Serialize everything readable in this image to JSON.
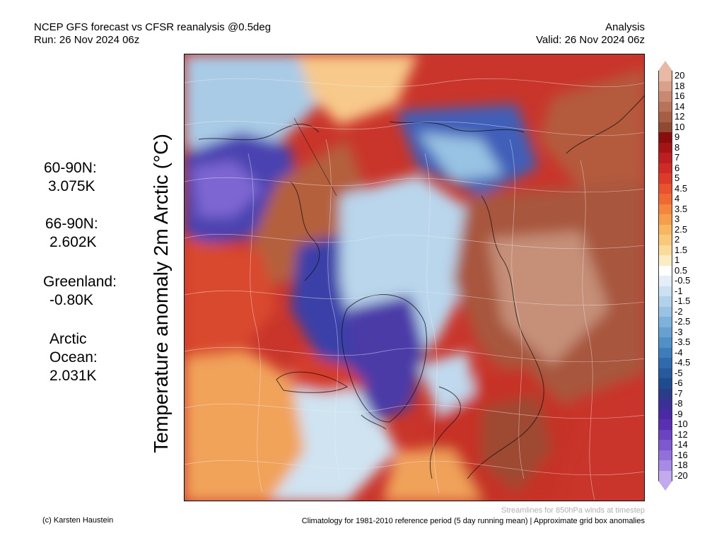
{
  "header": {
    "title": "NCEP GFS forecast vs CFSR reanalysis @0.5deg",
    "run": "Run: 26 Nov 2024 06z",
    "type": "Analysis",
    "valid": "Valid: 26 Nov 2024 06z"
  },
  "y_title": "Temperature anomaly 2m Arctic (°C)",
  "stats": [
    {
      "label": "60-90N:",
      "value": "3.075K"
    },
    {
      "label": "66-90N:",
      "value": "2.602K"
    },
    {
      "label": "Greenland:",
      "value": "-0.80K"
    },
    {
      "label": "Arctic",
      "label2": "Ocean:",
      "value": "2.031K"
    }
  ],
  "colorbar": {
    "levels": [
      "20",
      "18",
      "16",
      "14",
      "12",
      "10",
      "9",
      "8",
      "7",
      "6",
      "5",
      "4.5",
      "4",
      "3.5",
      "3",
      "2.5",
      "2",
      "1.5",
      "1",
      "0.5",
      "-0.5",
      "-1",
      "-1.5",
      "-2",
      "-2.5",
      "-3",
      "-3.5",
      "-4",
      "-4.5",
      "-5",
      "-6",
      "-7",
      "-8",
      "-9",
      "-10",
      "-12",
      "-14",
      "-16",
      "-18",
      "-20"
    ],
    "colors": [
      "#e8b9a4",
      "#d9a08a",
      "#c98870",
      "#b87358",
      "#a65f45",
      "#8e4a33",
      "#8a0d0d",
      "#a31515",
      "#bb1f1f",
      "#cf2a24",
      "#de3a2a",
      "#e8532e",
      "#ef6a33",
      "#f3853c",
      "#f59f4c",
      "#f7b65f",
      "#f8c978",
      "#fadb99",
      "#fcecc3",
      "#ffffff",
      "#e3eef7",
      "#cbe0f0",
      "#b2d2ea",
      "#98c3e3",
      "#7eb2db",
      "#66a1d1",
      "#5090c7",
      "#3e7dbb",
      "#2f6aae",
      "#255a9f",
      "#1f4b90",
      "#2a3c8a",
      "#3a3096",
      "#4a2aa3",
      "#5a30b3",
      "#6b42c2",
      "#7e58cf",
      "#9270da",
      "#a78ae3",
      "#c1aaed"
    ]
  },
  "footer": {
    "credit": "(c) Karsten Haustein",
    "note": "Streamlines for 850hPa winds at timestep",
    "climatology": "Climatology for 1981-2010 reference period (5 day running mean) | Approximate grid box anomalies"
  }
}
